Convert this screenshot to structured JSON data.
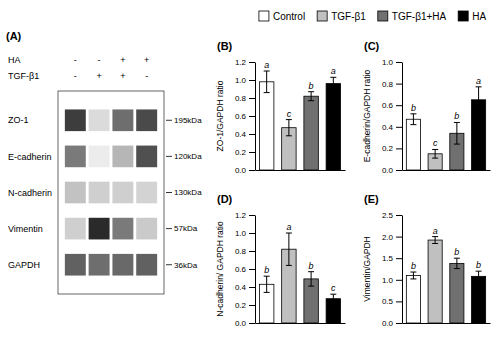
{
  "chart_data": [
    {
      "type": "heatmap",
      "title": "(A)",
      "rows": [
        "ZO-1",
        "E-cadherin",
        "N-cadherin",
        "Vimentin",
        "GAPDH"
      ],
      "row_units": [
        "195kDa",
        "120kDa",
        "130kDa",
        "57kDa",
        "36kDa"
      ],
      "lanes": [
        {
          "name": "HA",
          "values": [
            "-",
            "-",
            "+",
            "+"
          ]
        },
        {
          "name": "TGF-β1",
          "values": [
            "-",
            "+",
            "+",
            "-"
          ]
        }
      ],
      "cells": [
        [
          0.8,
          0.15,
          0.6,
          0.75
        ],
        [
          0.55,
          0.08,
          0.3,
          0.72
        ],
        [
          0.25,
          0.2,
          0.2,
          0.18
        ],
        [
          0.2,
          0.88,
          0.55,
          0.22
        ],
        [
          0.65,
          0.6,
          0.62,
          0.65
        ]
      ]
    },
    {
      "type": "bar",
      "title": "(B)",
      "ylabel": "ZO-1/GAPDH ratio",
      "categories": [
        "Control",
        "TGF-β1",
        "TGF-β1+HA",
        "HA"
      ],
      "values": [
        0.98,
        0.47,
        0.82,
        0.96
      ],
      "errors": [
        0.12,
        0.09,
        0.05,
        0.07
      ],
      "annotations": [
        "a",
        "c",
        "b",
        "a"
      ],
      "colors": [
        "white",
        "#c0c0c0",
        "#707070",
        "black"
      ],
      "ylim": [
        0,
        1.2
      ],
      "yticks": [
        {
          "value": 0.0,
          "label": "0.0"
        },
        0.2,
        0.4,
        0.6,
        0.8,
        {
          "value": 1.0,
          "label": "1.0"
        },
        1.2
      ],
      "grid": false,
      "legend": "top",
      "tick_labels": "y"
    },
    {
      "type": "bar",
      "title": "(C)",
      "ylabel": "E-cadherin/GAPDH ratio",
      "categories": [
        "Control",
        "TGF-β1",
        "TGF-β1+HA",
        "HA"
      ],
      "values": [
        0.47,
        0.15,
        0.34,
        0.65
      ],
      "errors": [
        0.05,
        0.04,
        0.1,
        0.12
      ],
      "annotations": [
        "b",
        "c",
        "b",
        "a"
      ],
      "colors": [
        "white",
        "#c0c0c0",
        "#707070",
        "black"
      ],
      "ylim": [
        0,
        1.0
      ],
      "yticks": [
        {
          "value": 0.0,
          "label": "0.0"
        },
        0.2,
        0.4,
        0.6,
        0.8,
        {
          "value": 1.0,
          "label": "1.0"
        }
      ],
      "grid": false,
      "tick_labels": "y"
    },
    {
      "type": "bar",
      "title": "(D)",
      "ylabel": "N-cadherin/ GAPDH ratio",
      "categories": [
        "Control",
        "TGF-β1",
        "TGF-β1+HA",
        "HA"
      ],
      "values": [
        0.43,
        0.82,
        0.49,
        0.27
      ],
      "errors": [
        0.09,
        0.18,
        0.08,
        0.05
      ],
      "annotations": [
        "b",
        "a",
        "b",
        "c"
      ],
      "colors": [
        "white",
        "#c0c0c0",
        "#707070",
        "black"
      ],
      "ylim": [
        0,
        1.2
      ],
      "yticks": [
        {
          "value": 0.0,
          "label": "0.0"
        },
        0.2,
        0.4,
        0.6,
        0.8,
        {
          "value": 1.0,
          "label": "1.0"
        },
        1.2
      ],
      "grid": false,
      "tick_labels": "y"
    },
    {
      "type": "bar",
      "title": "(E)",
      "ylabel": "Vimentin/GAPDH",
      "categories": [
        "Control",
        "TGF-β1",
        "TGF-β1+HA",
        "HA"
      ],
      "values": [
        1.1,
        1.92,
        1.38,
        1.08
      ],
      "errors": [
        0.08,
        0.08,
        0.12,
        0.12
      ],
      "annotations": [
        "b",
        "a",
        "b",
        "b"
      ],
      "colors": [
        "white",
        "#c0c0c0",
        "#707070",
        "black"
      ],
      "ylim": [
        0,
        2.5
      ],
      "yticks": [
        {
          "value": 0.0,
          "label": "0.0"
        },
        0.5,
        {
          "value": 1.0,
          "label": "1.0"
        },
        1.5,
        {
          "value": 2.0,
          "label": "2.0"
        },
        2.5
      ],
      "grid": false,
      "tick_labels": "y"
    }
  ]
}
